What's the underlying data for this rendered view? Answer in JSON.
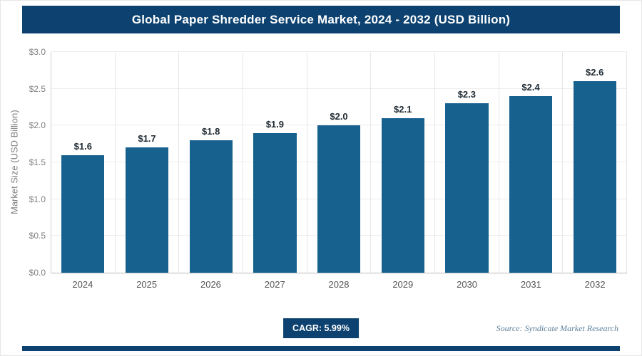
{
  "header": {
    "title": "Global Paper Shredder Service Market, 2024 - 2032 (USD Billion)"
  },
  "chart_data": {
    "type": "bar",
    "title": "Global Paper Shredder Service Market, 2024 - 2032 (USD Billion)",
    "categories": [
      "2024",
      "2025",
      "2026",
      "2027",
      "2028",
      "2029",
      "2030",
      "2031",
      "2032"
    ],
    "values": [
      1.6,
      1.7,
      1.8,
      1.9,
      2.0,
      2.1,
      2.3,
      2.4,
      2.6
    ],
    "value_labels": [
      "$1.6",
      "$1.7",
      "$1.8",
      "$1.9",
      "$2.0",
      "$2.1",
      "$2.3",
      "$2.4",
      "$2.6"
    ],
    "xlabel": "",
    "ylabel": "Market Size (USD Billion)",
    "ylim": [
      0,
      3.0
    ],
    "ytick_step": 0.5,
    "yticks": [
      "$0.0",
      "$0.5",
      "$1.0",
      "$1.5",
      "$2.0",
      "$2.5",
      "$3.0"
    ],
    "grid": true,
    "legend": "none",
    "bar_color": "#17618e"
  },
  "footer": {
    "cagr_label": "CAGR: 5.99%",
    "source": "Source: Syndicate Market Research"
  },
  "colors": {
    "header_bg": "#0d4270",
    "bar": "#17618e",
    "badge_bg": "#0d4270",
    "accent_bar": "#0d4270",
    "grid": "#ececec",
    "tick_text": "#808080",
    "value_text": "#1f2a33",
    "source_text": "#5d7f99"
  }
}
